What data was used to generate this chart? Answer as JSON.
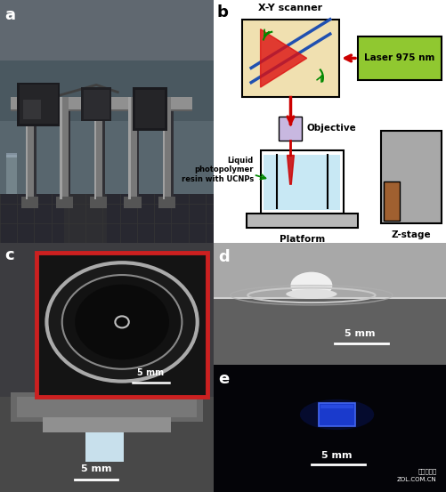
{
  "fig_width": 5.01,
  "fig_height": 5.53,
  "dpi": 100,
  "panel_a": {
    "label": "a",
    "bg_top": "#6b7a82",
    "bg_mid": "#4a5560",
    "bg_bot": "#2a3038",
    "label_color": "white"
  },
  "panel_b": {
    "label": "b",
    "bg_color": "#ffffff",
    "label_color": "black",
    "scanner_color": "#f0e0b0",
    "laser_color": "#90c830",
    "laser_label": "Laser 975 nm",
    "scanner_label": "X-Y scanner",
    "objective_color": "#c8b8e0",
    "objective_label": "Objective",
    "liquid_label": "Liquid\nphotopolymer\nresin with UCNPs",
    "platform_label": "Platform",
    "zstage_label": "Z-stage",
    "beam_color": "#cc0000",
    "arrow_color": "#006600",
    "liquid_color": "#c8e8f4",
    "platform_color": "#b8b8b8",
    "zstage_color": "#a8a8a8",
    "wood_color": "#a06030"
  },
  "panel_c": {
    "label": "c",
    "bg_dark": "#303030",
    "bg_mid": "#505050",
    "bg_light": "#707070",
    "inset_border_color": "#cc2020",
    "label_color": "white",
    "scale_label": "5 mm",
    "inner_scale_label": "5 mm"
  },
  "panel_d": {
    "label": "d",
    "bg_top": "#b0b0b0",
    "bg_bot": "#505050",
    "label_color": "white",
    "scale_label": "5 mm"
  },
  "panel_e": {
    "label": "e",
    "bg_color": "#040408",
    "label_color": "white",
    "scale_label": "5 mm",
    "cube_color": "#1a3acc",
    "watermark_line1": "ZOL.COM.CN",
    "watermark_line2": "中关村在线"
  }
}
